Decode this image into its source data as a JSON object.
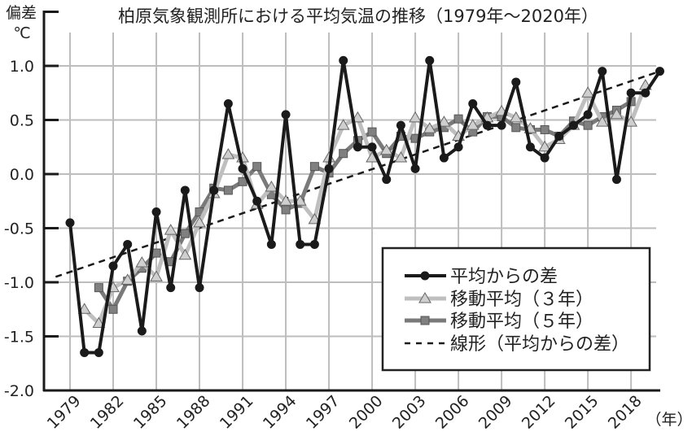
{
  "chart_data": {
    "type": "line",
    "title": "柏原気象観測所における平均気温の推移（1979年～2020年）",
    "ylabel_line1": "偏差",
    "ylabel_line2": "℃",
    "xlabel": "（年）",
    "ylim": [
      -2.0,
      1.5
    ],
    "xlim": [
      1979,
      2020
    ],
    "grid": true,
    "legend_position": "bottom-right",
    "y_ticks": [
      1.0,
      0.5,
      0.0,
      -0.5,
      -1.0,
      -1.5,
      -2.0
    ],
    "y_tick_labels": [
      "1.0",
      "0.5",
      "0.0",
      "-0.5",
      "-1.0",
      "-1.5",
      "-2.0"
    ],
    "x_ticks": [
      1979,
      1982,
      1985,
      1988,
      1991,
      1994,
      1997,
      2000,
      2003,
      2006,
      2009,
      2012,
      2015,
      2018
    ],
    "x_tick_labels": [
      "1979",
      "1982",
      "1985",
      "1988",
      "1991",
      "1994",
      "1997",
      "2000",
      "2003",
      "2006",
      "2009",
      "2012",
      "2015",
      "2018"
    ],
    "series": [
      {
        "name": "平均からの差",
        "color": "#1a1a1a",
        "marker": "circle",
        "x_start": 1979,
        "values": [
          -0.45,
          -1.65,
          -1.65,
          -0.85,
          -0.65,
          -1.45,
          -0.35,
          -1.05,
          -0.15,
          -1.05,
          -0.15,
          0.65,
          0.05,
          -0.25,
          -0.65,
          0.55,
          -0.65,
          -0.65,
          0.05,
          1.05,
          0.25,
          0.25,
          -0.05,
          0.45,
          0.05,
          1.05,
          0.15,
          0.25,
          0.65,
          0.45,
          0.45,
          0.85,
          0.25,
          0.15,
          0.35,
          0.45,
          0.55,
          0.95,
          -0.05,
          0.75,
          0.75,
          0.95
        ]
      },
      {
        "name": "移動平均（３年）",
        "color": "#bfbfbf",
        "marker": "triangle",
        "x_start": 1980,
        "values": [
          -1.25,
          -1.38,
          -1.05,
          -0.98,
          -0.82,
          -0.95,
          -0.52,
          -0.75,
          -0.45,
          -0.18,
          0.18,
          0.15,
          -0.28,
          -0.12,
          -0.25,
          -0.25,
          -0.42,
          0.15,
          0.45,
          0.52,
          0.15,
          0.22,
          0.15,
          0.52,
          0.42,
          0.48,
          0.35,
          0.45,
          0.52,
          0.58,
          0.52,
          0.42,
          0.25,
          0.32,
          0.45,
          0.75,
          0.48,
          0.55,
          0.48,
          0.82
        ]
      },
      {
        "name": "移動平均（５年）",
        "color": "#7a7a7a",
        "marker": "square",
        "x_start": 1981,
        "values": [
          -1.05,
          -1.25,
          -0.99,
          -0.87,
          -0.73,
          -0.81,
          -0.55,
          -0.35,
          -0.13,
          -0.15,
          -0.07,
          0.07,
          -0.19,
          -0.33,
          -0.27,
          0.07,
          0.01,
          0.19,
          0.31,
          0.39,
          0.19,
          0.35,
          0.33,
          0.39,
          0.43,
          0.51,
          0.39,
          0.53,
          0.53,
          0.43,
          0.41,
          0.41,
          0.35,
          0.49,
          0.45,
          0.53,
          0.59,
          0.67
        ]
      },
      {
        "name": "線形（平均からの差）",
        "color": "#1a1a1a",
        "marker": "none",
        "dashed": true,
        "x": [
          1978,
          2020
        ],
        "values": [
          -0.95,
          0.95
        ]
      }
    ]
  }
}
